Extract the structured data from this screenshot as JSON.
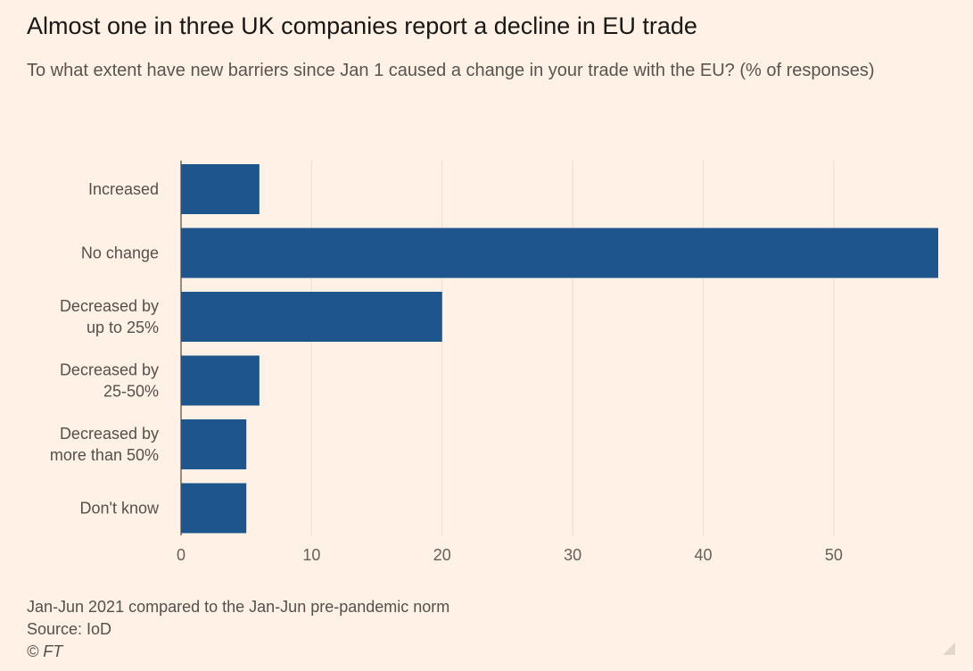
{
  "chart_data": {
    "type": "bar",
    "orientation": "horizontal",
    "title": "Almost one in three UK companies report a decline in EU trade",
    "subtitle": "To what extent have new barriers since Jan 1 caused a change in your trade with the EU? (% of responses)",
    "categories": [
      [
        "Increased"
      ],
      [
        "No change"
      ],
      [
        "Decreased by",
        "up to 25%"
      ],
      [
        "Decreased by",
        "25-50%"
      ],
      [
        "Decreased by",
        "more than 50%"
      ],
      [
        "Don't know"
      ]
    ],
    "values": [
      6,
      58,
      20,
      6,
      5,
      5
    ],
    "xlim": [
      0,
      58
    ],
    "xticks": [
      "0",
      "10",
      "20",
      "30",
      "40",
      "50"
    ],
    "grid": true,
    "bar_color": "#1e558c",
    "grid_color": "#e8ddd3",
    "axis_color": "#4d4845"
  },
  "footer": {
    "note": "Jan-Jun 2021 compared to the Jan-Jun pre-pandemic norm",
    "source": "Source: IoD",
    "copyright": "© FT"
  },
  "icons": {
    "resize": "resize-grip-icon"
  }
}
